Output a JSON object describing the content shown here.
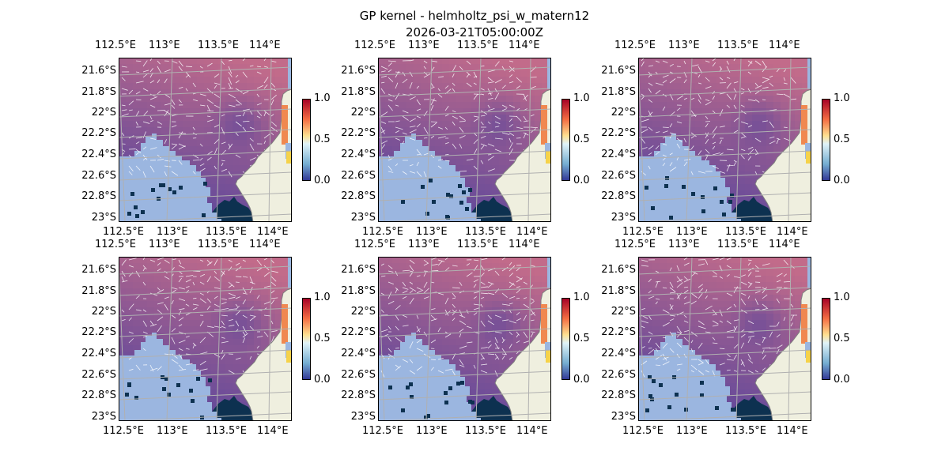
{
  "figure": {
    "title": "GP kernel - helmholtz_psi_w_matern12",
    "subtitle": "2026-03-21T05:00:00Z"
  },
  "colors": {
    "land": "#efefdf",
    "ocean_mask": "#9bb6e0",
    "field_low": "#5a469c",
    "field_high": "#c26b8a",
    "shallow_dark": "#0d3150",
    "coastline": "#7f7f7f",
    "gridline": "#b0b0b0",
    "arrow": "#ffffff"
  },
  "map": {
    "lon_ticks": [
      "112.5°E",
      "113°E",
      "113.5°E",
      "114°E"
    ],
    "lat_ticks": [
      "21.6°S",
      "21.8°S",
      "22°S",
      "22.2°S",
      "22.4°S",
      "22.6°S",
      "22.8°S",
      "23°S"
    ],
    "lon_range": [
      112.5,
      114.15
    ],
    "lat_range": [
      -23.0,
      -21.45
    ]
  },
  "colorbar": {
    "colormap": "RdYlBu_r",
    "range": [
      0.0,
      1.0
    ],
    "ticks": [
      "0.0",
      "0.5",
      "1.0"
    ]
  },
  "panels": [
    {
      "id": "r1c1"
    },
    {
      "id": "r1c2"
    },
    {
      "id": "r1c3"
    },
    {
      "id": "r2c1"
    },
    {
      "id": "r2c2"
    },
    {
      "id": "r2c3"
    }
  ]
}
